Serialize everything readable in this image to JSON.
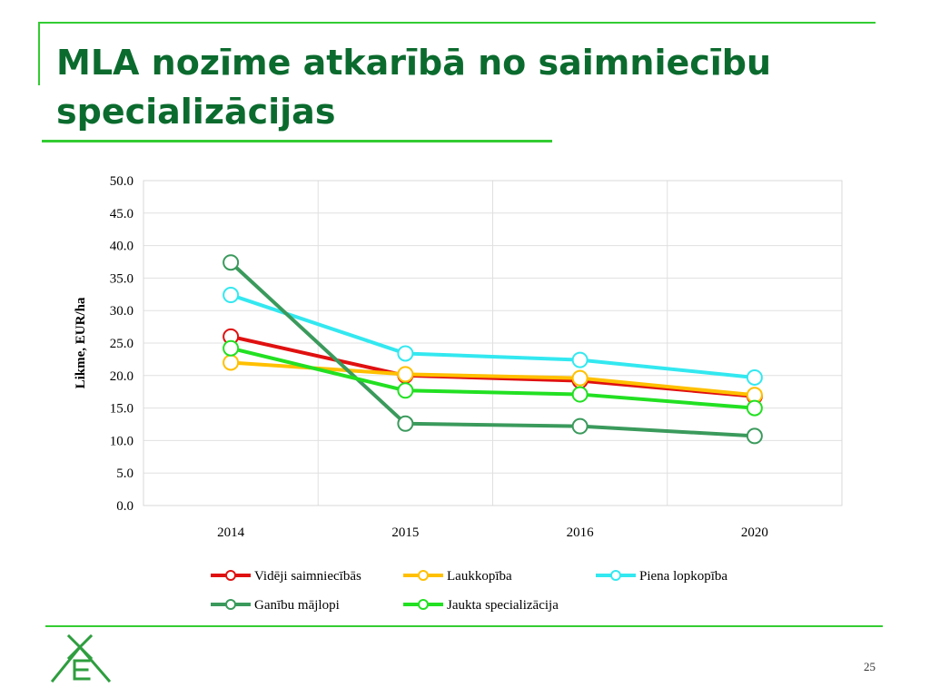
{
  "slide": {
    "title": "MLA nozīme atkarībā no saimniecību specializācijas",
    "page_number": "25",
    "colors": {
      "title": "#0b6b2e",
      "accent_line": "#33cc33",
      "logo": "#2e9e3e"
    }
  },
  "chart_data": {
    "type": "line",
    "title": "",
    "xlabel": "",
    "ylabel": "Likme, EUR/ha",
    "categories": [
      "2014",
      "2015",
      "2016",
      "2020"
    ],
    "ylim": [
      0,
      50
    ],
    "ytick_step": 5,
    "ytick_labels": [
      "0.0",
      "5.0",
      "10.0",
      "15.0",
      "20.0",
      "25.0",
      "30.0",
      "35.0",
      "40.0",
      "45.0",
      "50.0"
    ],
    "grid": true,
    "legend_position": "bottom",
    "series": [
      {
        "name": "Vidēji saimniecībās",
        "color": "#e01010",
        "values": [
          26.0,
          20.0,
          19.2,
          16.8
        ]
      },
      {
        "name": "Laukkopība",
        "color": "#ffc000",
        "values": [
          22.0,
          20.2,
          19.6,
          17.0
        ]
      },
      {
        "name": "Piena lopkopība",
        "color": "#33e8f0",
        "values": [
          32.4,
          23.4,
          22.4,
          19.7
        ]
      },
      {
        "name": "Ganību mājlopi",
        "color": "#3a9a5c",
        "values": [
          37.4,
          12.6,
          12.2,
          10.7
        ]
      },
      {
        "name": "Jaukta specializācija",
        "color": "#22e022",
        "values": [
          24.2,
          17.7,
          17.1,
          15.0
        ]
      }
    ]
  }
}
